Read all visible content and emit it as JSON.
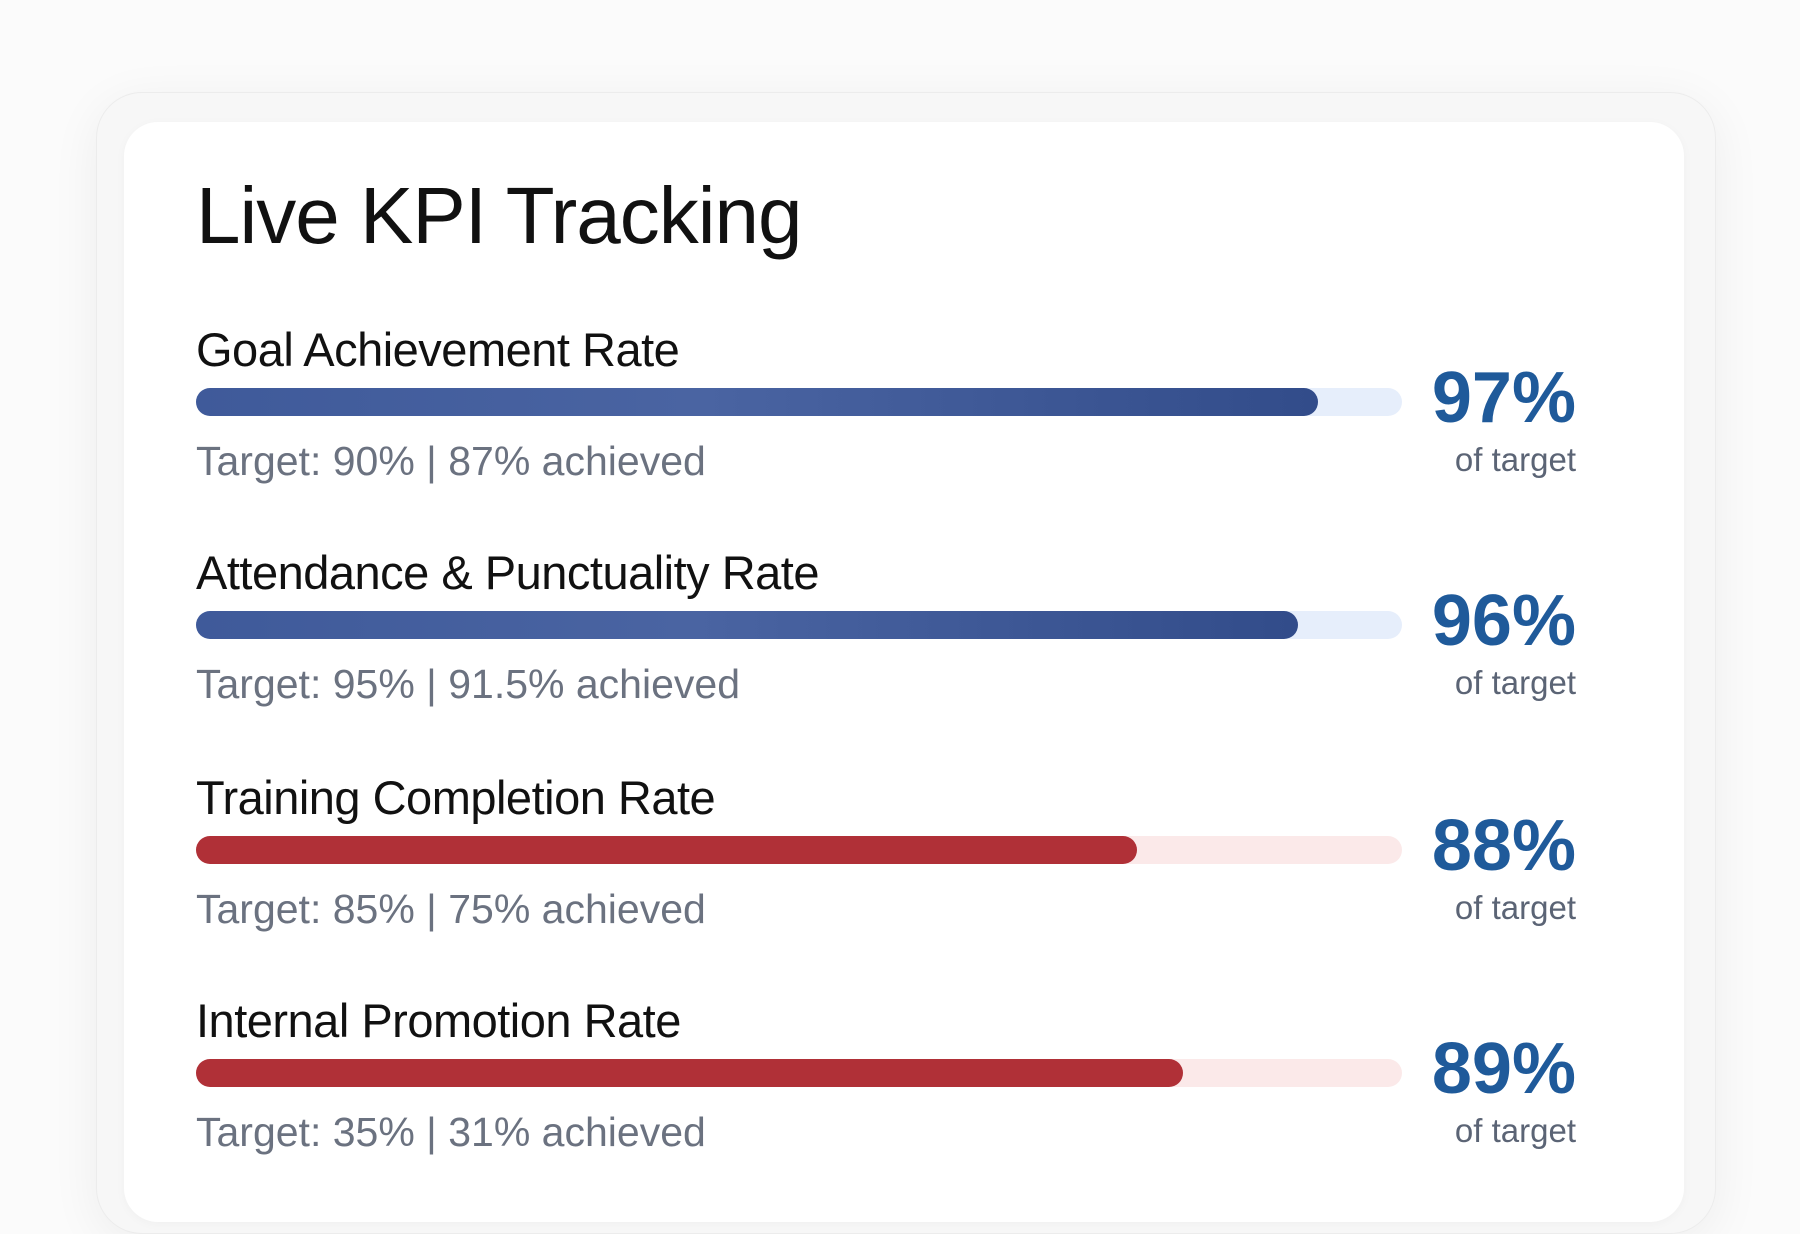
{
  "page": {
    "title": "Live KPI Tracking",
    "colors": {
      "blue_bar": "#4a64a2",
      "blue_track": "#e6eefb",
      "red_bar": "#b03037",
      "red_track": "#fbe9e9",
      "percent_text": "#1f5a9a"
    }
  },
  "kpis": [
    {
      "name": "Goal Achievement Rate",
      "detail": "Target: 90% | 87% achieved",
      "percent": "97%",
      "sub": "of target",
      "progress": 0.93,
      "color": "blue"
    },
    {
      "name": "Attendance & Punctuality Rate",
      "detail": "Target: 95% | 91.5% achieved",
      "percent": "96%",
      "sub": "of target",
      "progress": 0.914,
      "color": "blue"
    },
    {
      "name": "Training Completion Rate",
      "detail": "Target: 85% | 75% achieved",
      "percent": "88%",
      "sub": "of target",
      "progress": 0.78,
      "color": "red"
    },
    {
      "name": "Internal Promotion Rate",
      "detail": "Target: 35% | 31% achieved",
      "percent": "89%",
      "sub": "of target",
      "progress": 0.818,
      "color": "red"
    }
  ]
}
